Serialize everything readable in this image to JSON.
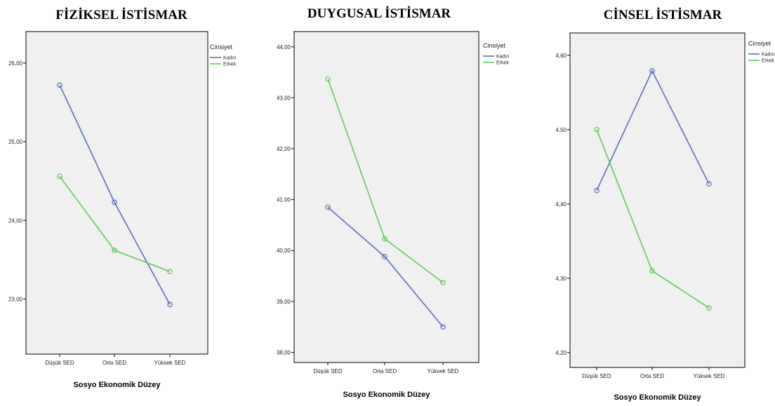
{
  "chart_data": [
    {
      "type": "line",
      "title": "FİZİKSEL İSTİSMAR",
      "xlabel": "Sosyo Ekonomik Düzey",
      "ylabel": "",
      "categories": [
        "Düşük SED",
        "Orta SED",
        "Yüksek SED"
      ],
      "yticks": [
        "23,00",
        "24,00",
        "25,00",
        "26,00"
      ],
      "ylim": [
        22.3,
        26.4
      ],
      "legend_title": "Cinsiyet",
      "legend_position": "right",
      "series": [
        {
          "name": "Kadın",
          "color": "#5b6fc0",
          "values": [
            25.72,
            24.23,
            22.93
          ]
        },
        {
          "name": "Erkek",
          "color": "#5fcc55",
          "values": [
            24.56,
            23.62,
            23.35
          ]
        }
      ]
    },
    {
      "type": "line",
      "title": "DUYGUSAL İSTİSMAR",
      "xlabel": "Sosyo Ekonomik Düzey",
      "ylabel": "",
      "categories": [
        "Düşük SED",
        "Orta SED",
        "Yüksek SED"
      ],
      "yticks": [
        "38,00",
        "39,00",
        "40,00",
        "41,00",
        "42,00",
        "43,00",
        "44,00"
      ],
      "ylim": [
        37.8,
        44.3
      ],
      "legend_title": "Cinsiyet",
      "legend_position": "right",
      "series": [
        {
          "name": "Kadın",
          "color": "#5b6fc0",
          "values": [
            40.85,
            39.88,
            38.5
          ]
        },
        {
          "name": "Erkek",
          "color": "#5fcc55",
          "values": [
            43.37,
            40.23,
            39.37
          ]
        }
      ]
    },
    {
      "type": "line",
      "title": "CİNSEL İSTİSMAR",
      "xlabel": "Sosyo Ekonomik Düzey",
      "ylabel": "",
      "categories": [
        "Düşük SED",
        "Orta SED",
        "Yüksek SED"
      ],
      "yticks": [
        "4,20",
        "4,30",
        "4,40",
        "4,50",
        "4,60"
      ],
      "ylim": [
        4.18,
        4.63
      ],
      "legend_title": "Cinsiyet",
      "legend_position": "right",
      "series": [
        {
          "name": "Kadın",
          "color": "#5b6fc0",
          "values": [
            4.418,
            4.579,
            4.427
          ]
        },
        {
          "name": "Erkek",
          "color": "#5fcc55",
          "values": [
            4.5,
            4.31,
            4.26
          ]
        }
      ]
    }
  ]
}
